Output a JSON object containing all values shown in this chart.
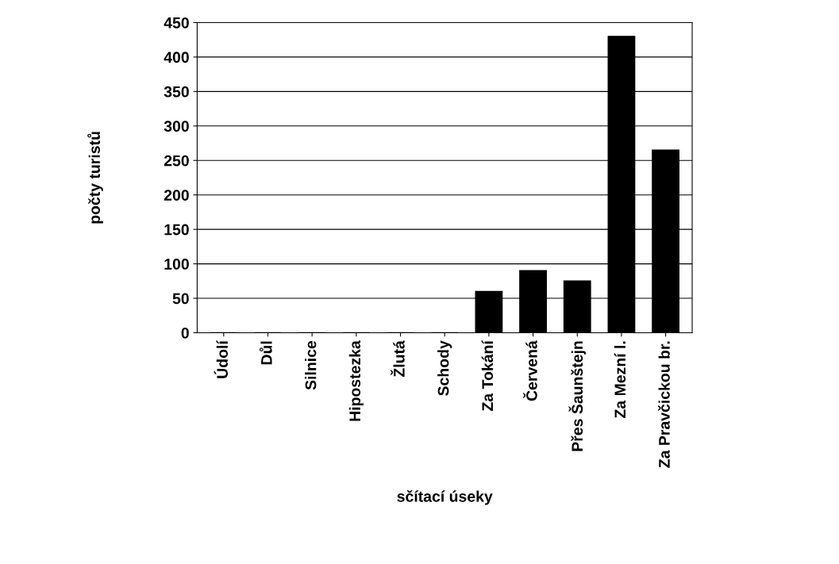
{
  "chart_data": {
    "type": "bar",
    "xlabel": "sčítací úseky",
    "ylabel": "počty turistů",
    "categories": [
      "Údolí",
      "Důl",
      "Silnice",
      "Hipostezka",
      "Žlutá",
      "Schody",
      "Za Tokání",
      "Červená",
      "Přes Šaunštejn",
      "Za Mezní l.",
      "Za Pravčickou br."
    ],
    "values": [
      0,
      0,
      0,
      0,
      0,
      0,
      60,
      90,
      75,
      430,
      265
    ],
    "color": "#000000",
    "ylim": [
      0,
      450
    ],
    "yticks": [
      0,
      50,
      100,
      150,
      200,
      250,
      300,
      350,
      400,
      450
    ],
    "grid": "y",
    "legend": false
  }
}
